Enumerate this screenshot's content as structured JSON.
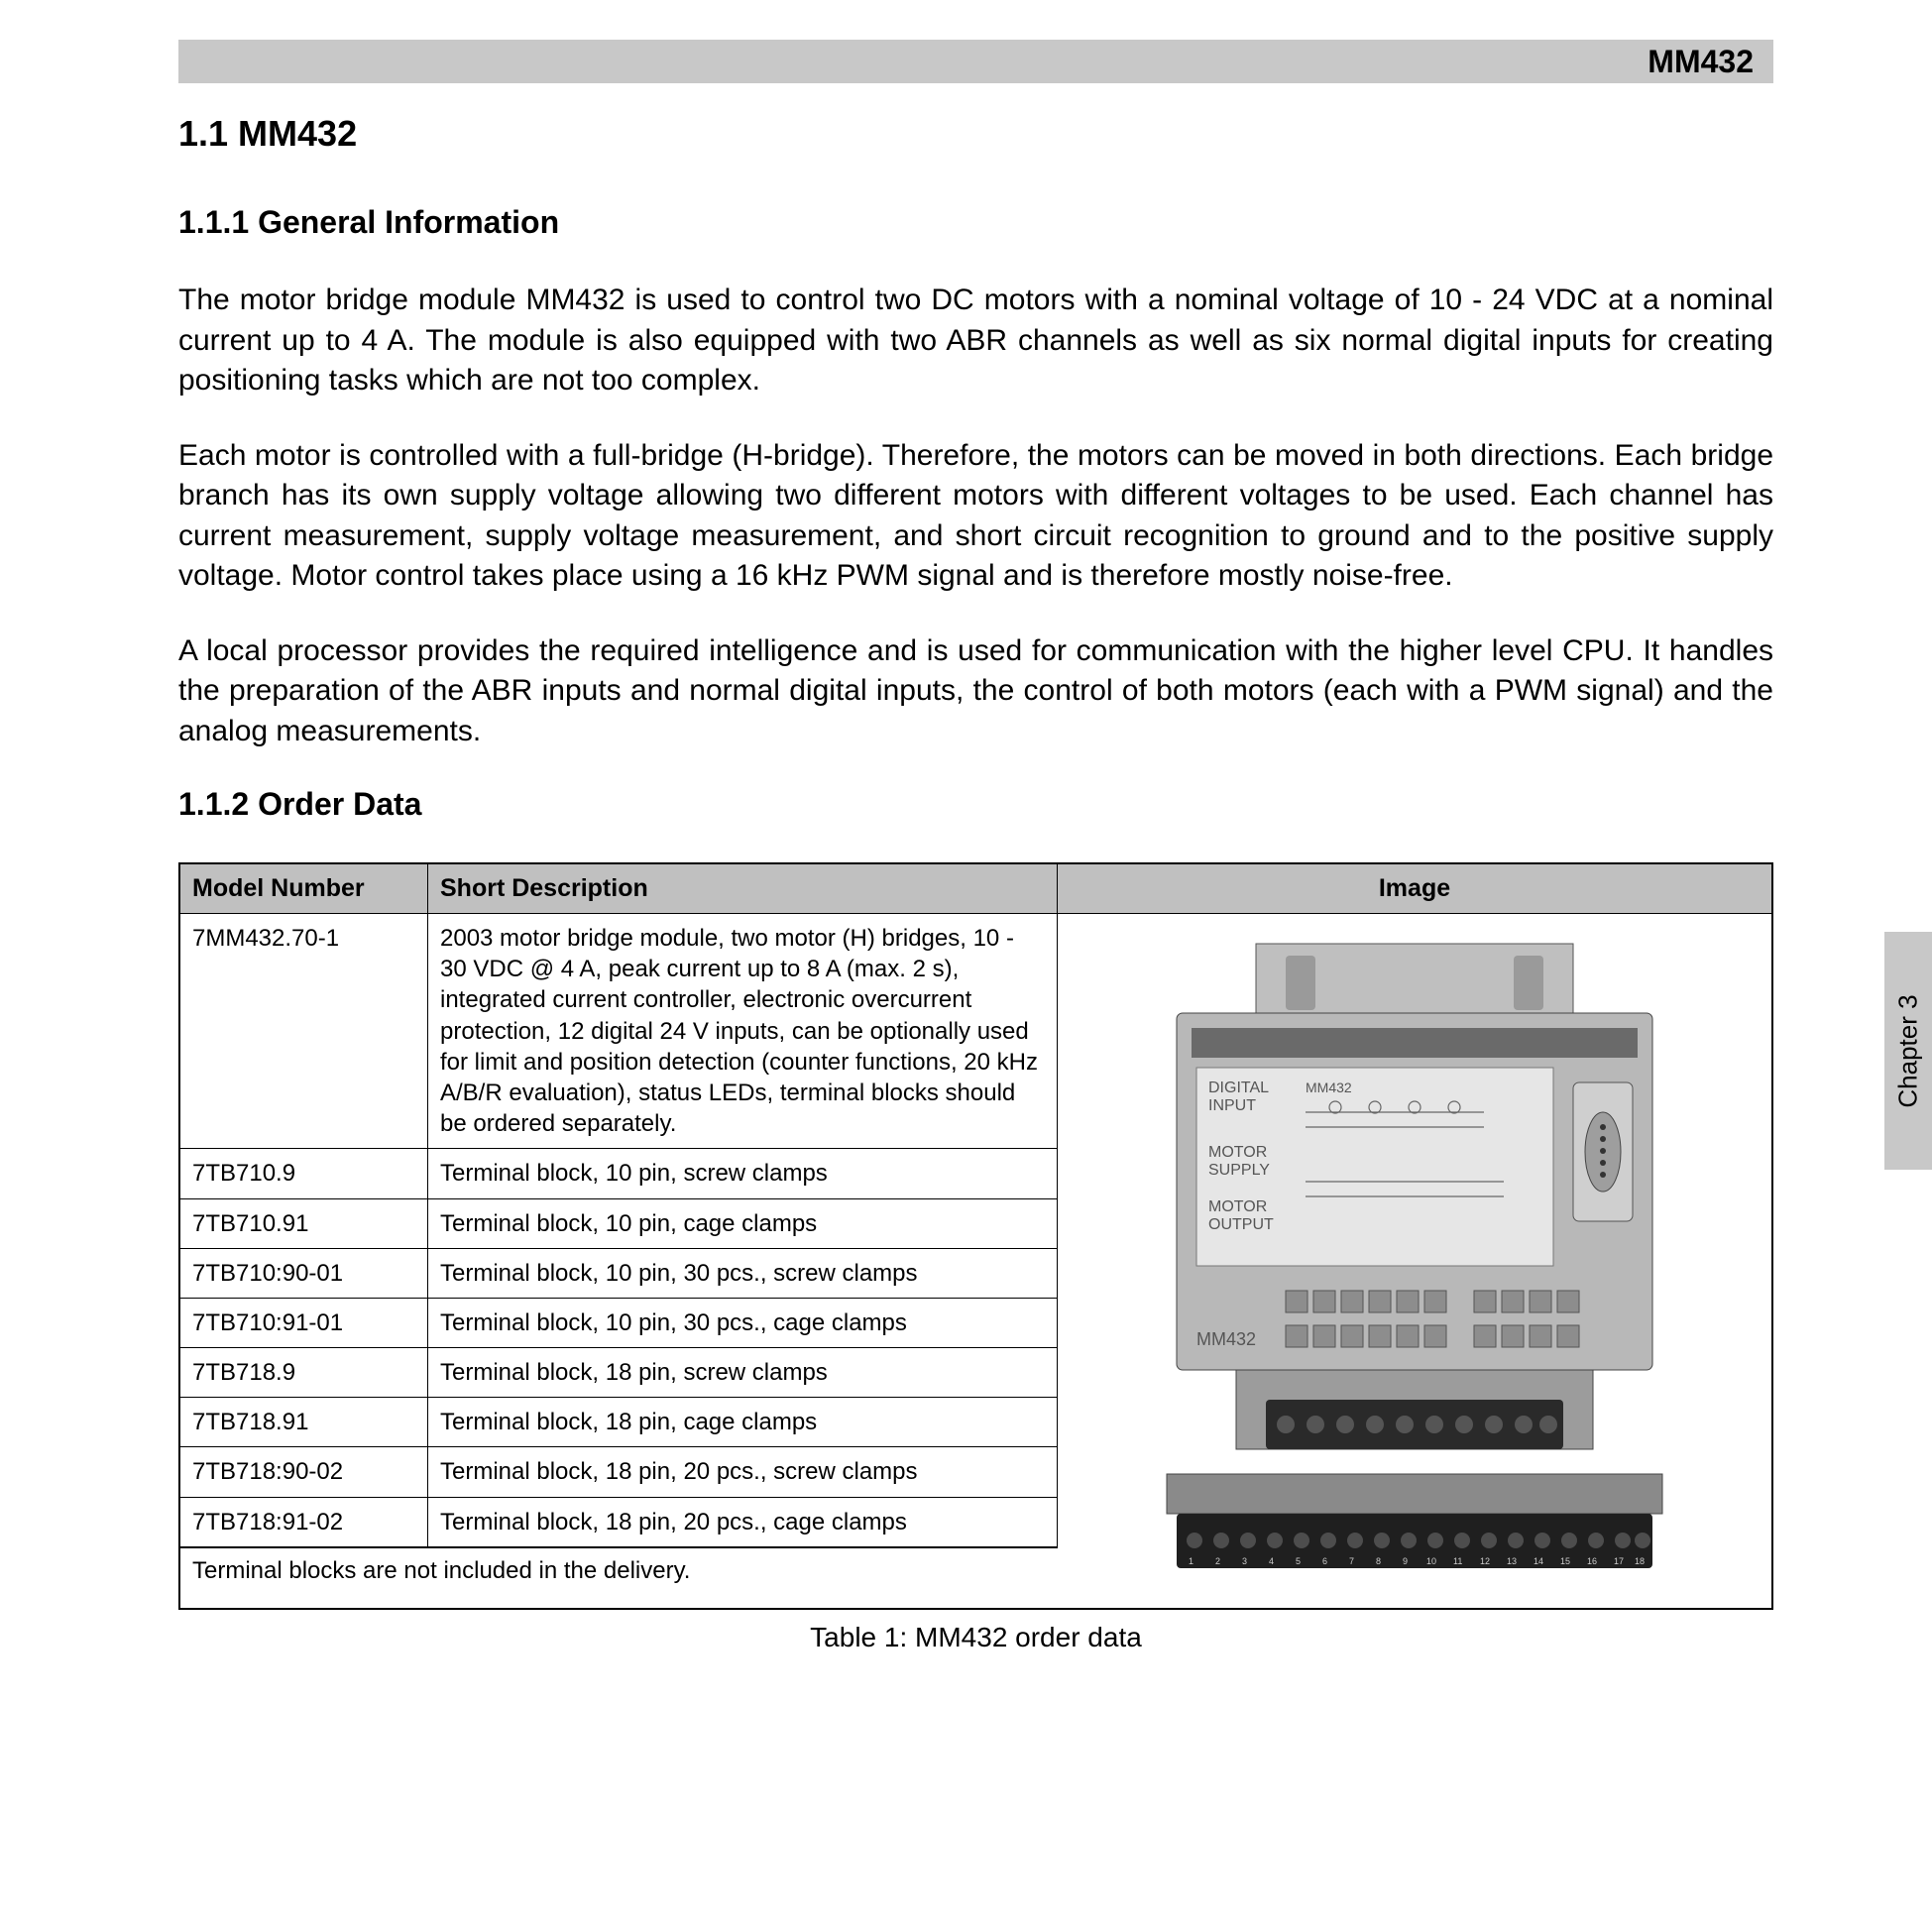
{
  "header": {
    "title": "MM432"
  },
  "section": {
    "num_title": "1.1  MM432"
  },
  "sub1": {
    "heading": "1.1.1  General Information",
    "p1": "The motor bridge module MM432 is used to control two DC motors with a nominal voltage of 10 - 24 VDC at a nominal current up to 4 A. The module is also equipped with two ABR channels as well as six normal digital inputs for creating positioning tasks which are not too complex.",
    "p2": "Each motor is controlled with a full-bridge (H-bridge). Therefore, the motors can be moved in both directions. Each bridge branch has its own supply voltage allowing two different motors with different voltages to be used. Each channel has current measurement, supply voltage measurement, and short circuit recognition to ground and to the positive supply voltage. Motor control takes place using a 16 kHz PWM signal and is therefore mostly noise-free.",
    "p3": "A local processor provides the required intelligence and is used for communication with the higher level CPU. It handles the preparation of the ABR inputs and normal digital inputs, the control of both motors (each with a PWM signal) and the analog measurements."
  },
  "sub2": {
    "heading": "1.1.2  Order Data"
  },
  "chapter_tab": "Chapter 3",
  "table": {
    "columns": {
      "c1": "Model Number",
      "c2": "Short Description",
      "c3": "Image"
    },
    "col_widths": {
      "model": 250,
      "image": 720
    },
    "rows": [
      {
        "model": "7MM432.70-1",
        "desc": "2003 motor bridge module, two motor (H) bridges, 10 - 30 VDC @ 4 A, peak current up to 8 A (max. 2 s), integrated current controller, electronic overcurrent protection, 12 digital 24 V inputs, can be optionally used for limit and position detection (counter functions, 20 kHz A/B/R evaluation), status  LEDs, terminal blocks should be ordered separately."
      },
      {
        "model": "7TB710.9",
        "desc": "Terminal block, 10 pin, screw clamps"
      },
      {
        "model": "7TB710.91",
        "desc": "Terminal block, 10 pin, cage clamps"
      },
      {
        "model": "7TB710:90-01",
        "desc": "Terminal block, 10 pin, 30 pcs., screw clamps"
      },
      {
        "model": "7TB710:91-01",
        "desc": "Terminal block, 10 pin, 30 pcs., cage clamps"
      },
      {
        "model": "7TB718.9",
        "desc": "Terminal block, 18 pin, screw clamps"
      },
      {
        "model": "7TB718.91",
        "desc": "Terminal block, 18 pin, cage clamps"
      },
      {
        "model": "7TB718:90-02",
        "desc": "Terminal block, 18 pin, 20  pcs., screw clamps"
      },
      {
        "model": "7TB718:91-02",
        "desc": "Terminal block, 18 pin, 20  pcs., cage clamps"
      }
    ],
    "footnote": "Terminal blocks are not included in the delivery.",
    "caption": "Table 1: MM432 order data"
  },
  "module_illustration": {
    "labels": {
      "top1": "DIGITAL",
      "top2": "INPUT",
      "mid1": "MOTOR",
      "mid2": "SUPPLY",
      "mid3": "MOTOR",
      "mid4": "OUTPUT",
      "model": "MM432",
      "bottom": "MM432"
    },
    "colors": {
      "body": "#b8b8b8",
      "face": "#d9d9d9",
      "dark": "#555555",
      "screen": "#e8e8e8",
      "black": "#1a1a1a"
    }
  }
}
